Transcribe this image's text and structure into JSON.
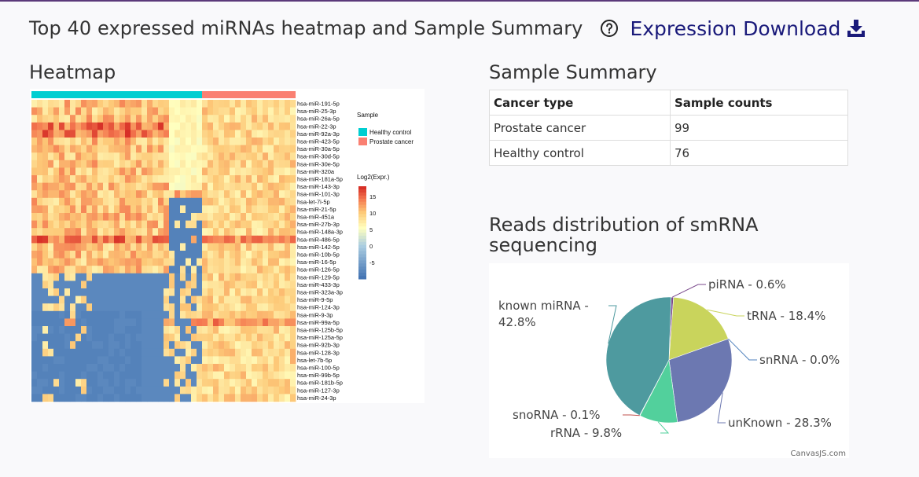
{
  "header": {
    "title": "Top 40 expressed miRNAs heatmap and Sample Summary",
    "help_icon": "question-circle-icon",
    "download_label": "Expression Download",
    "download_icon": "download-icon"
  },
  "heatmap_section": {
    "title": "Heatmap",
    "legend_sample_title": "Sample",
    "groups": [
      {
        "name": "Healthy control",
        "color": "#00ced1"
      },
      {
        "name": "Prostate cancer",
        "color": "#fa8072"
      }
    ],
    "color_title": "Log2(Expr.)",
    "color_ticks": [
      "15",
      "10",
      "5",
      "0",
      "-5"
    ],
    "genes": [
      "hsa-miR-191-5p",
      "hsa-miR-25-3p",
      "hsa-miR-26a-5p",
      "hsa-miR-22-3p",
      "hsa-miR-92a-3p",
      "hsa-miR-423-5p",
      "hsa-miR-30a-5p",
      "hsa-miR-30d-5p",
      "hsa-miR-30e-5p",
      "hsa-miR-320a",
      "hsa-miR-181a-5p",
      "hsa-miR-143-3p",
      "hsa-miR-101-3p",
      "hsa-let-7i-5p",
      "hsa-miR-21-5p",
      "hsa-miR-451a",
      "hsa-miR-27b-3p",
      "hsa-miR-148a-3p",
      "hsa-miR-486-5p",
      "hsa-miR-142-5p",
      "hsa-miR-10b-5p",
      "hsa-miR-16-5p",
      "hsa-miR-126-5p",
      "hsa-miR-129-5p",
      "hsa-miR-433-3p",
      "hsa-miR-323a-3p",
      "hsa-miR-9-5p",
      "hsa-miR-124-3p",
      "hsa-miR-9-3p",
      "hsa-miR-99a-5p",
      "hsa-miR-125b-5p",
      "hsa-miR-125a-5p",
      "hsa-miR-92b-3p",
      "hsa-miR-128-3p",
      "hsa-let-7b-5p",
      "hsa-miR-100-5p",
      "hsa-miR-99b-5p",
      "hsa-miR-181b-5p",
      "hsa-miR-127-3p",
      "hsa-miR-24-3p"
    ]
  },
  "summary_section": {
    "title": "Sample Summary",
    "columns": [
      "Cancer type",
      "Sample counts"
    ],
    "rows": [
      [
        "Prostate cancer",
        "99"
      ],
      [
        "Healthy control",
        "76"
      ]
    ]
  },
  "reads_section": {
    "title_line1": "Reads distribution of smRNA",
    "title_line2": "sequencing",
    "credit": "CanvasJS.com"
  },
  "chart_data": {
    "type": "pie",
    "title": "",
    "slices": [
      {
        "name": "piRNA",
        "value": 0.6,
        "label": "piRNA - 0.6%",
        "color": "#7b4a8c"
      },
      {
        "name": "tRNA",
        "value": 18.4,
        "label": "tRNA - 18.4%",
        "color": "#c9d45c"
      },
      {
        "name": "snRNA",
        "value": 0.0,
        "label": "snRNA - 0.0%",
        "color": "#4f81bd"
      },
      {
        "name": "unKnown",
        "value": 28.3,
        "label": "unKnown - 28.3%",
        "color": "#6c78b1"
      },
      {
        "name": "rRNA",
        "value": 9.8,
        "label": "rRNA - 9.8%",
        "color": "#52d09c"
      },
      {
        "name": "snoRNA",
        "value": 0.1,
        "label": "snoRNA - 0.1%",
        "color": "#c0504d"
      },
      {
        "name": "known miRNA",
        "value": 42.8,
        "label_line1": "known miRNA -",
        "label_line2": "42.8%",
        "color": "#4e9a9f"
      }
    ]
  }
}
